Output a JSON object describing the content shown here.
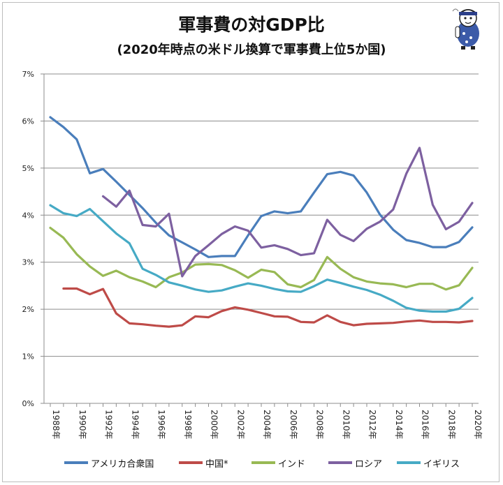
{
  "chart_data": {
    "type": "line",
    "title": "軍事費の対GDP比",
    "subtitle": "(2020年時点の米ドル換算で軍事費上位5か国)",
    "x": [
      1988,
      1989,
      1990,
      1991,
      1992,
      1993,
      1994,
      1995,
      1996,
      1997,
      1998,
      1999,
      2000,
      2001,
      2002,
      2003,
      2004,
      2005,
      2006,
      2007,
      2008,
      2009,
      2010,
      2011,
      2012,
      2013,
      2014,
      2015,
      2016,
      2017,
      2018,
      2019,
      2020
    ],
    "x_tick_labels": [
      "1988年",
      "1990年",
      "1992年",
      "1994年",
      "1996年",
      "1998年",
      "2000年",
      "2002年",
      "2004年",
      "2006年",
      "2008年",
      "2010年",
      "2012年",
      "2014年",
      "2016年",
      "2018年",
      "2020年"
    ],
    "y_tick_labels": [
      "0%",
      "1%",
      "2%",
      "3%",
      "4%",
      "5%",
      "6%",
      "7%"
    ],
    "ylim": [
      0,
      7
    ],
    "y_unit": "%",
    "grid": true,
    "legend_position": "bottom",
    "series": [
      {
        "name": "アメリカ合衆国",
        "color": "#4a7ebb",
        "values": [
          6.08,
          5.87,
          5.61,
          4.89,
          4.98,
          4.71,
          4.43,
          4.15,
          3.84,
          3.57,
          3.42,
          3.27,
          3.11,
          3.13,
          3.13,
          3.57,
          3.98,
          4.08,
          4.04,
          4.08,
          4.48,
          4.87,
          4.92,
          4.84,
          4.48,
          4.01,
          3.69,
          3.47,
          3.41,
          3.32,
          3.32,
          3.43,
          3.74
        ]
      },
      {
        "name": "中国*",
        "color": "#be4b48",
        "values": [
          null,
          2.44,
          2.44,
          2.32,
          2.43,
          1.91,
          1.7,
          1.68,
          1.65,
          1.63,
          1.66,
          1.85,
          1.83,
          1.96,
          2.04,
          1.99,
          1.92,
          1.85,
          1.84,
          1.73,
          1.72,
          1.87,
          1.73,
          1.66,
          1.69,
          1.7,
          1.71,
          1.74,
          1.76,
          1.73,
          1.73,
          1.72,
          1.75
        ]
      },
      {
        "name": "インド",
        "color": "#98b954",
        "values": [
          3.73,
          3.52,
          3.17,
          2.91,
          2.71,
          2.82,
          2.68,
          2.59,
          2.47,
          2.68,
          2.78,
          2.95,
          2.96,
          2.94,
          2.83,
          2.67,
          2.84,
          2.79,
          2.53,
          2.47,
          2.62,
          3.11,
          2.86,
          2.68,
          2.59,
          2.55,
          2.53,
          2.47,
          2.54,
          2.54,
          2.42,
          2.51,
          2.88
        ]
      },
      {
        "name": "ロシア",
        "color": "#7d60a0",
        "values": [
          null,
          null,
          null,
          null,
          4.4,
          4.18,
          4.52,
          3.79,
          3.76,
          4.03,
          2.7,
          3.13,
          3.36,
          3.6,
          3.76,
          3.67,
          3.31,
          3.36,
          3.28,
          3.15,
          3.19,
          3.9,
          3.58,
          3.45,
          3.71,
          3.86,
          4.12,
          4.88,
          5.43,
          4.22,
          3.7,
          3.86,
          4.26
        ]
      },
      {
        "name": "イギリス",
        "color": "#46aac5",
        "values": [
          4.21,
          4.04,
          3.98,
          4.13,
          3.87,
          3.61,
          3.4,
          2.86,
          2.73,
          2.57,
          2.5,
          2.42,
          2.37,
          2.4,
          2.48,
          2.55,
          2.5,
          2.43,
          2.38,
          2.37,
          2.49,
          2.63,
          2.56,
          2.48,
          2.41,
          2.31,
          2.18,
          2.03,
          1.97,
          1.95,
          1.95,
          2.01,
          2.24
        ]
      }
    ]
  }
}
